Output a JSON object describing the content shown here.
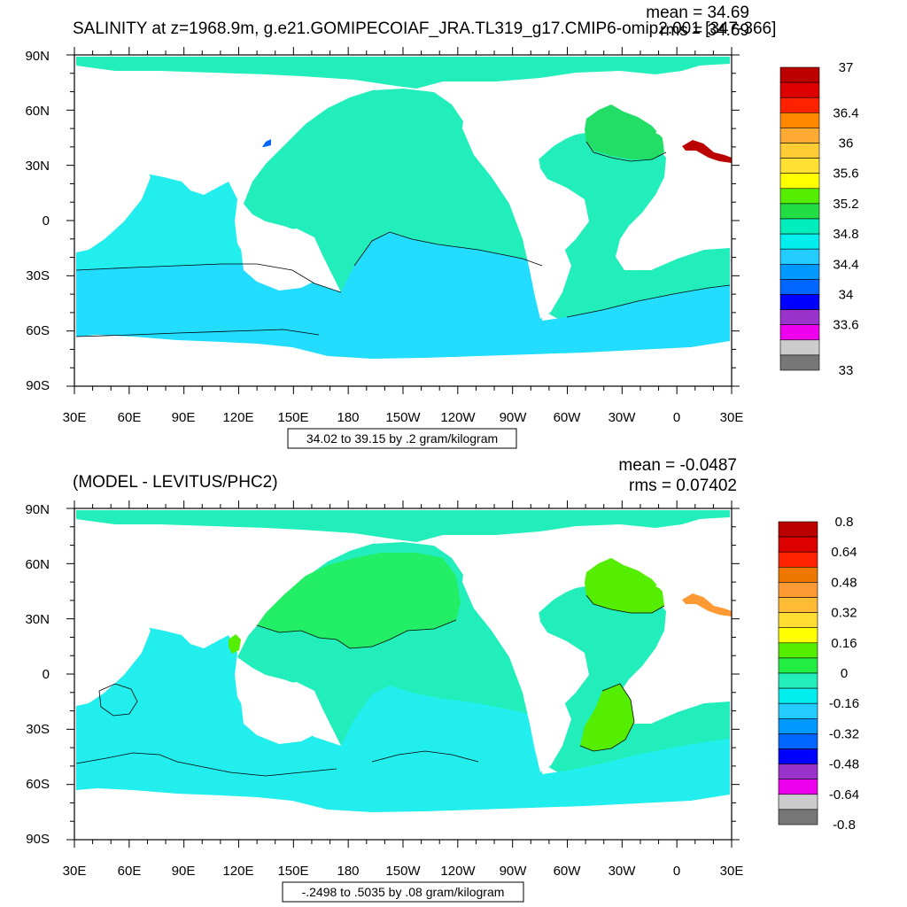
{
  "colors": {
    "land": "#ffffff",
    "frame": "#000000",
    "contour": "#000000"
  },
  "panels": [
    {
      "id": "top",
      "title": "SALINITY at z=1968.9m, g.e21.GOMIPECOIAF_JRA.TL319_g17.CMIP6-omip2.001 [347-366]",
      "stats": {
        "mean": "mean = 34.69",
        "rms": "rms = 34.69"
      },
      "lat_labels": [
        "90N",
        "60N",
        "30N",
        "0",
        "30S",
        "60S",
        "90S"
      ],
      "lon_labels": [
        "30E",
        "60E",
        "90E",
        "120E",
        "150E",
        "180",
        "150W",
        "120W",
        "90W",
        "60W",
        "30W",
        "0",
        "30E"
      ],
      "info": "34.02 to 39.15 by .2 gram/kilogram",
      "colorbar": {
        "colors": [
          "#bb0000",
          "#dd0000",
          "#ff2200",
          "#ff8800",
          "#ffaa33",
          "#ffcc33",
          "#ffe033",
          "#ffff00",
          "#55ee00",
          "#22dd44",
          "#00eebb",
          "#00eeee",
          "#22ccff",
          "#0099ff",
          "#0066ff",
          "#0000ff",
          "#9933cc",
          "#ee00ee",
          "#cccccc",
          "#777777"
        ],
        "labels": [
          "37",
          "36.4",
          "36",
          "35.6",
          "35.2",
          "34.8",
          "34.4",
          "34",
          "33.6",
          "33"
        ],
        "label_boundaries": [
          0,
          3,
          5,
          7,
          9,
          11,
          13,
          15,
          17,
          20
        ]
      },
      "regions": {
        "arctic": "#22eebb",
        "pacific": "#22eebb",
        "atlantic": "#22eebb",
        "indian": "#22eeee",
        "southern": "#22ddff",
        "north_atlantic": "#22dd66",
        "mediterranean": "#bb0000",
        "okhotsk": "#0066ff",
        "north_pacific": "#22eebb"
      }
    },
    {
      "id": "bottom",
      "title": "(MODEL - LEVITUS/PHC2)",
      "stats": {
        "mean": "mean = -0.0487",
        "rms": "rms = 0.07402"
      },
      "lat_labels": [
        "90N",
        "60N",
        "30N",
        "0",
        "30S",
        "60S",
        "90S"
      ],
      "lon_labels": [
        "30E",
        "60E",
        "90E",
        "120E",
        "150E",
        "180",
        "150W",
        "120W",
        "90W",
        "60W",
        "30W",
        "0",
        "30E"
      ],
      "info": "-.2498 to .5035 by .08 gram/kilogram",
      "colorbar": {
        "colors": [
          "#bb0000",
          "#dd0000",
          "#ff2200",
          "#ee7700",
          "#ff9933",
          "#ffbb33",
          "#ffdd33",
          "#ffff00",
          "#55ee00",
          "#22ee44",
          "#22eebb",
          "#00eeee",
          "#22ccff",
          "#0099ff",
          "#0066ff",
          "#0000ff",
          "#9933cc",
          "#ee00ee",
          "#cccccc",
          "#777777"
        ],
        "labels": [
          "0.8",
          "0.64",
          "0.48",
          "0.32",
          "0.16",
          "0",
          "-0.16",
          "-0.32",
          "-0.48",
          "-0.64",
          "-0.8"
        ],
        "label_boundaries": [
          0,
          2,
          4,
          6,
          8,
          10,
          12,
          14,
          16,
          18,
          20
        ]
      },
      "regions": {
        "arctic": "#22eebb",
        "pacific": "#22eebb",
        "atlantic": "#22eebb",
        "indian": "#22eeee",
        "southern": "#22eeee",
        "north_atlantic": "#55ee00",
        "mediterranean": "#ff9933",
        "okhotsk": "#55ee00",
        "north_pacific": "#22ee66"
      }
    }
  ]
}
